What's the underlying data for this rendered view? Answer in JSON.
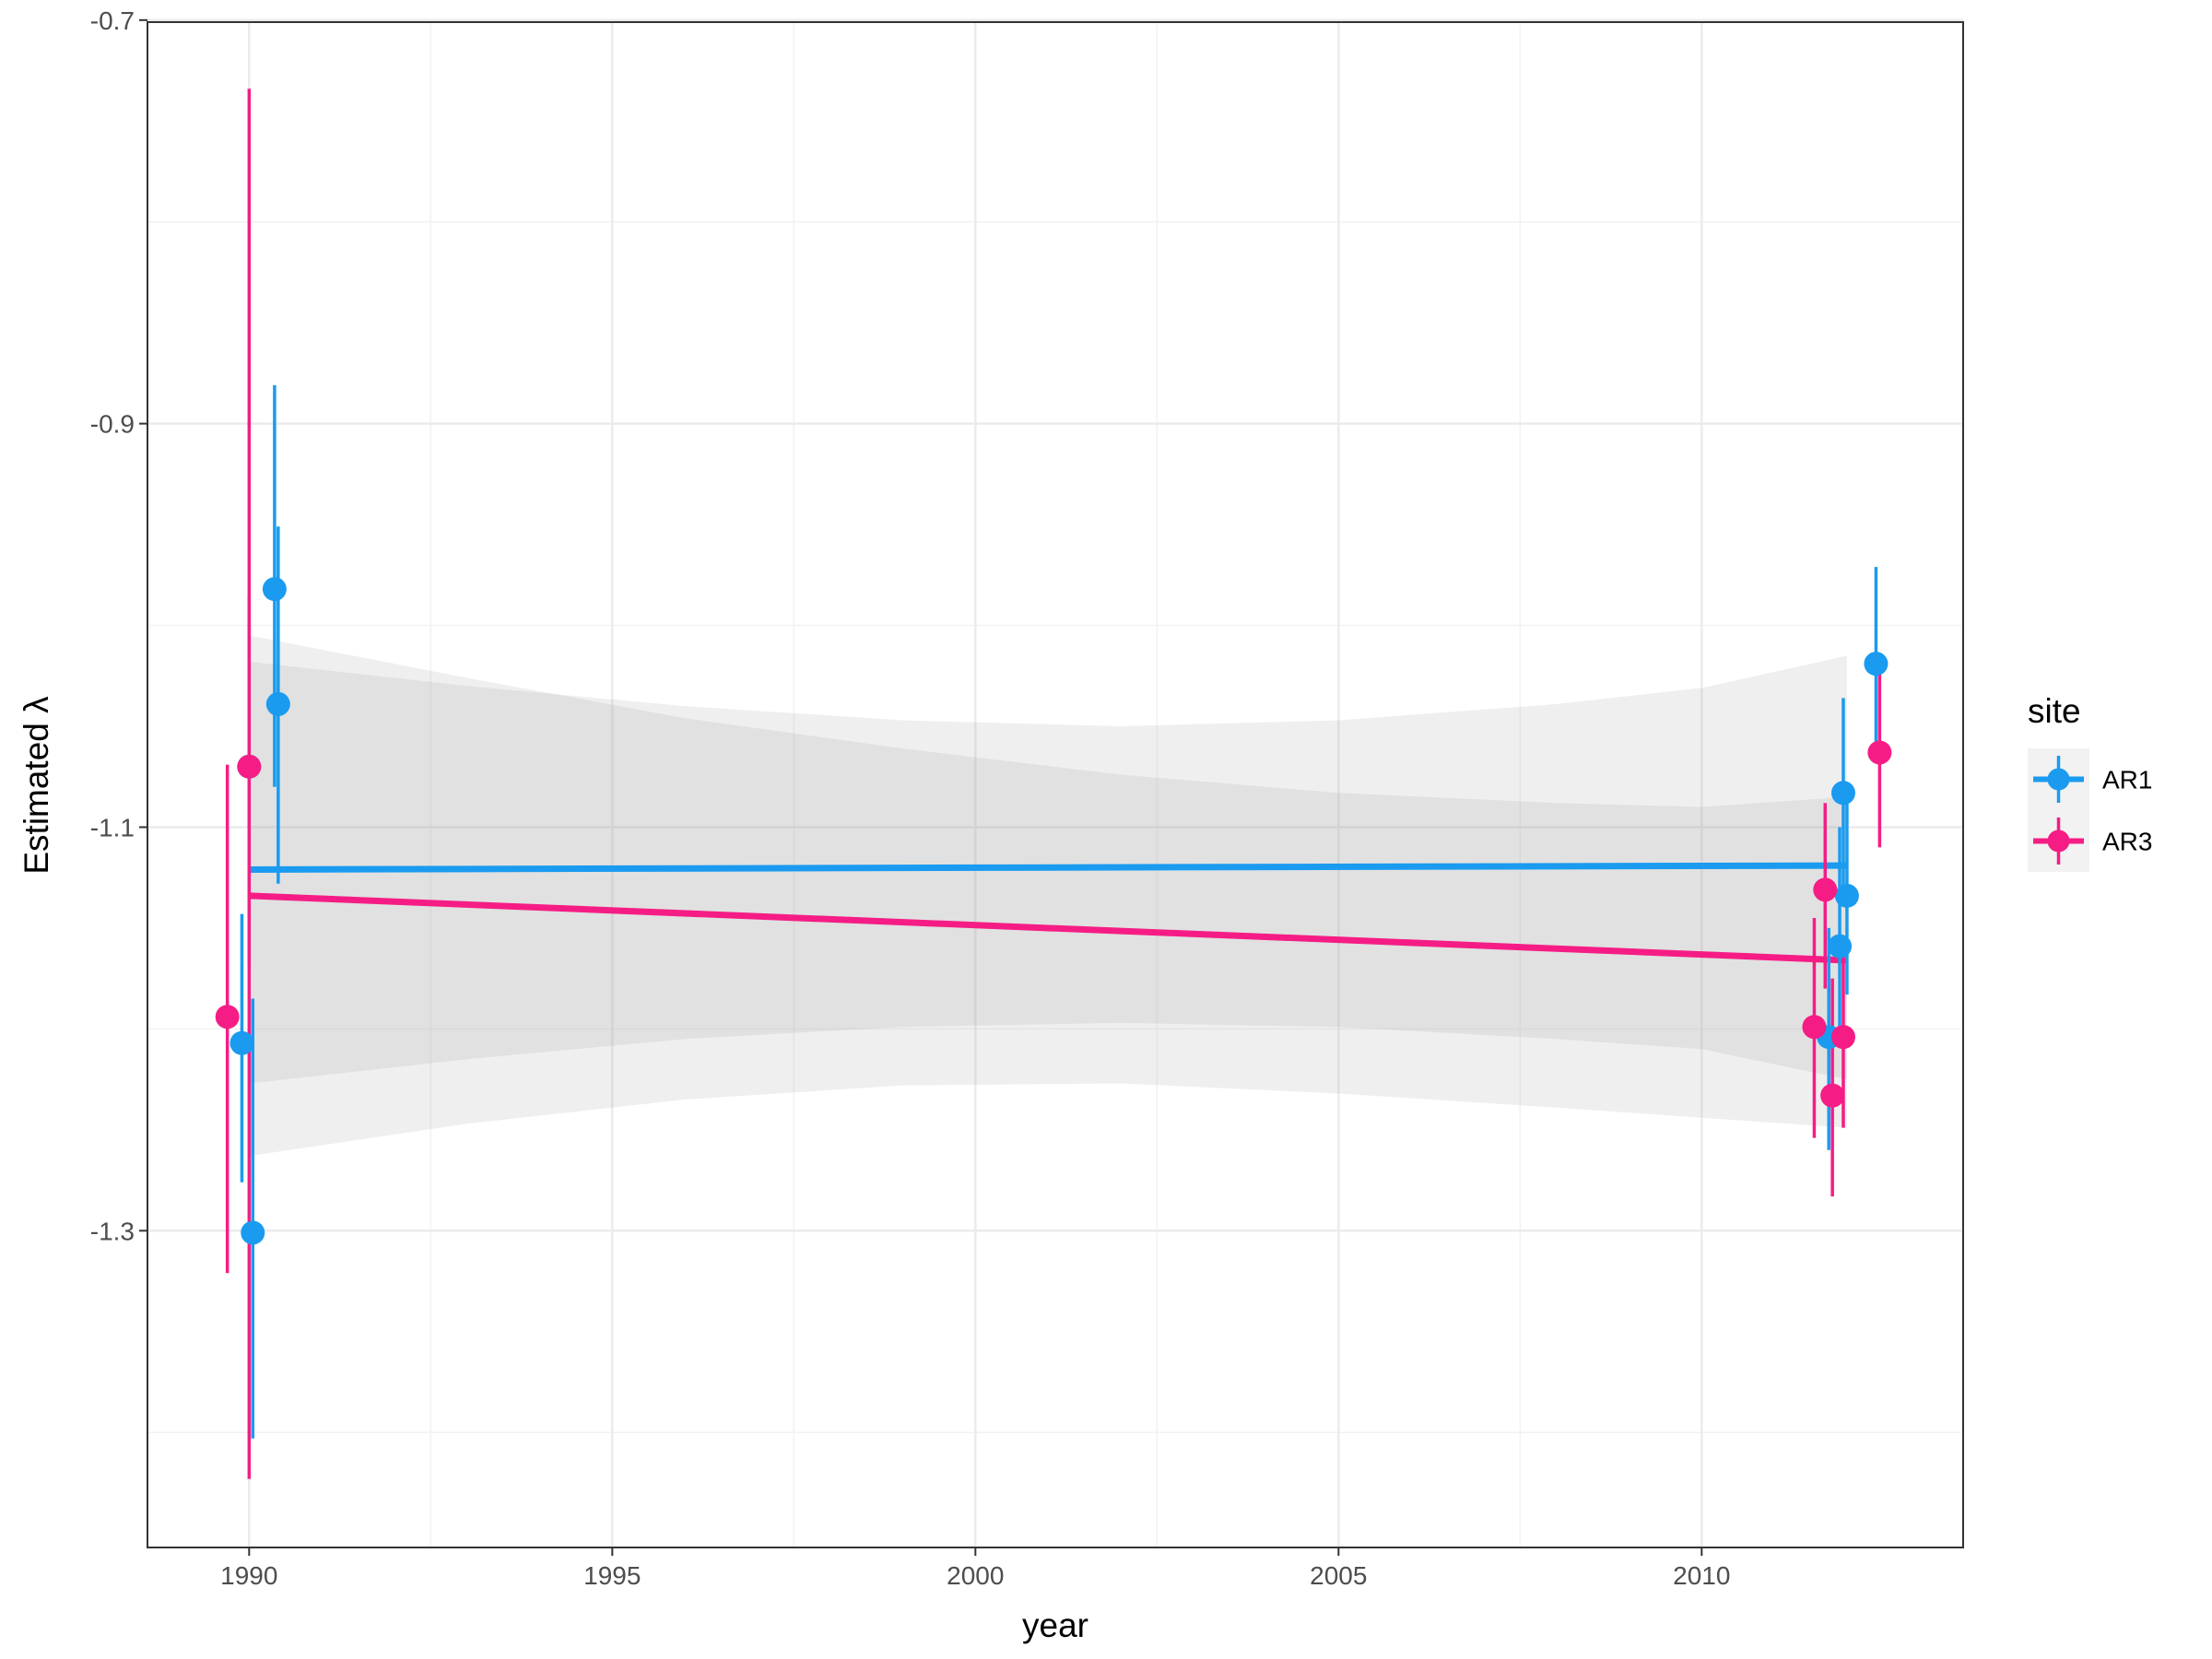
{
  "chart_data": {
    "type": "scatter",
    "xlabel": "year",
    "ylabel": "Estimated λ",
    "xlim": [
      1988.6,
      2013.6
    ],
    "ylim": [
      -1.457,
      -0.701
    ],
    "x_ticks": [
      1990,
      1995,
      2000,
      2005,
      2010
    ],
    "x_tick_labels": [
      "1990",
      "1995",
      "2000",
      "2005",
      "2010"
    ],
    "y_ticks": [
      -0.7,
      -0.9,
      -1.1,
      -1.3
    ],
    "y_tick_labels": [
      "-0.7",
      "-0.9",
      "-1.1",
      "-1.3"
    ],
    "grid": true,
    "legend": {
      "title": "site",
      "placement": "right"
    },
    "series": [
      {
        "name": "AR1",
        "color": "#1a9bf0",
        "points": [
          {
            "x": 1989.9,
            "y": -1.207,
            "lo": -1.276,
            "hi": -1.143
          },
          {
            "x": 1990.0,
            "y": -1.07,
            "lo": -1.167,
            "hi": -0.985
          },
          {
            "x": 1990.05,
            "y": -1.301,
            "lo": -1.403,
            "hi": -1.185
          },
          {
            "x": 1990.35,
            "y": -0.982,
            "lo": -1.08,
            "hi": -0.881
          },
          {
            "x": 1990.4,
            "y": -1.039,
            "lo": -1.128,
            "hi": -0.951
          },
          {
            "x": 2011.75,
            "y": -1.204,
            "lo": -1.26,
            "hi": -1.15
          },
          {
            "x": 2011.9,
            "y": -1.159,
            "lo": -1.208,
            "hi": -1.1
          },
          {
            "x": 2011.95,
            "y": -1.083,
            "lo": -1.13,
            "hi": -1.036
          },
          {
            "x": 2012.0,
            "y": -1.134,
            "lo": -1.183,
            "hi": -1.08
          },
          {
            "x": 2012.4,
            "y": -1.019,
            "lo": -1.064,
            "hi": -0.971
          }
        ],
        "trend": {
          "x": [
            1990.0,
            2012.0
          ],
          "y": [
            -1.121,
            -1.119
          ]
        },
        "ribbon": {
          "x": [
            1990.0,
            1993.0,
            1996.0,
            1999.0,
            2002.0,
            2005.0,
            2008.0,
            2010.0,
            2012.0
          ],
          "lo": [
            -1.227,
            -1.215,
            -1.205,
            -1.199,
            -1.197,
            -1.199,
            -1.205,
            -1.21,
            -1.225
          ],
          "hi": [
            -1.018,
            -1.03,
            -1.04,
            -1.047,
            -1.05,
            -1.047,
            -1.039,
            -1.031,
            -1.015
          ]
        }
      },
      {
        "name": "AR3",
        "color": "#f51d85",
        "points": [
          {
            "x": 1989.7,
            "y": -1.194,
            "lo": -1.321,
            "hi": -1.069
          },
          {
            "x": 1990.0,
            "y": -1.07,
            "lo": -1.423,
            "hi": -0.734
          },
          {
            "x": 2011.55,
            "y": -1.199,
            "lo": -1.254,
            "hi": -1.145
          },
          {
            "x": 2011.7,
            "y": -1.131,
            "lo": -1.18,
            "hi": -1.088
          },
          {
            "x": 2011.8,
            "y": -1.233,
            "lo": -1.283,
            "hi": -1.175
          },
          {
            "x": 2011.95,
            "y": -1.204,
            "lo": -1.249,
            "hi": -1.156
          },
          {
            "x": 2012.45,
            "y": -1.063,
            "lo": -1.11,
            "hi": -1.016
          }
        ],
        "trend": {
          "x": [
            1990.0,
            2012.0
          ],
          "y": [
            -1.134,
            -1.166
          ]
        },
        "ribbon": {
          "x": [
            1990.0,
            1993.0,
            1996.0,
            1999.0,
            2002.0,
            2005.0,
            2008.0,
            2010.0,
            2012.0
          ],
          "lo": [
            -1.263,
            -1.247,
            -1.235,
            -1.228,
            -1.227,
            -1.232,
            -1.239,
            -1.244,
            -1.249
          ],
          "hi": [
            -1.005,
            -1.026,
            -1.046,
            -1.061,
            -1.074,
            -1.083,
            -1.088,
            -1.09,
            -1.085
          ]
        }
      }
    ]
  }
}
